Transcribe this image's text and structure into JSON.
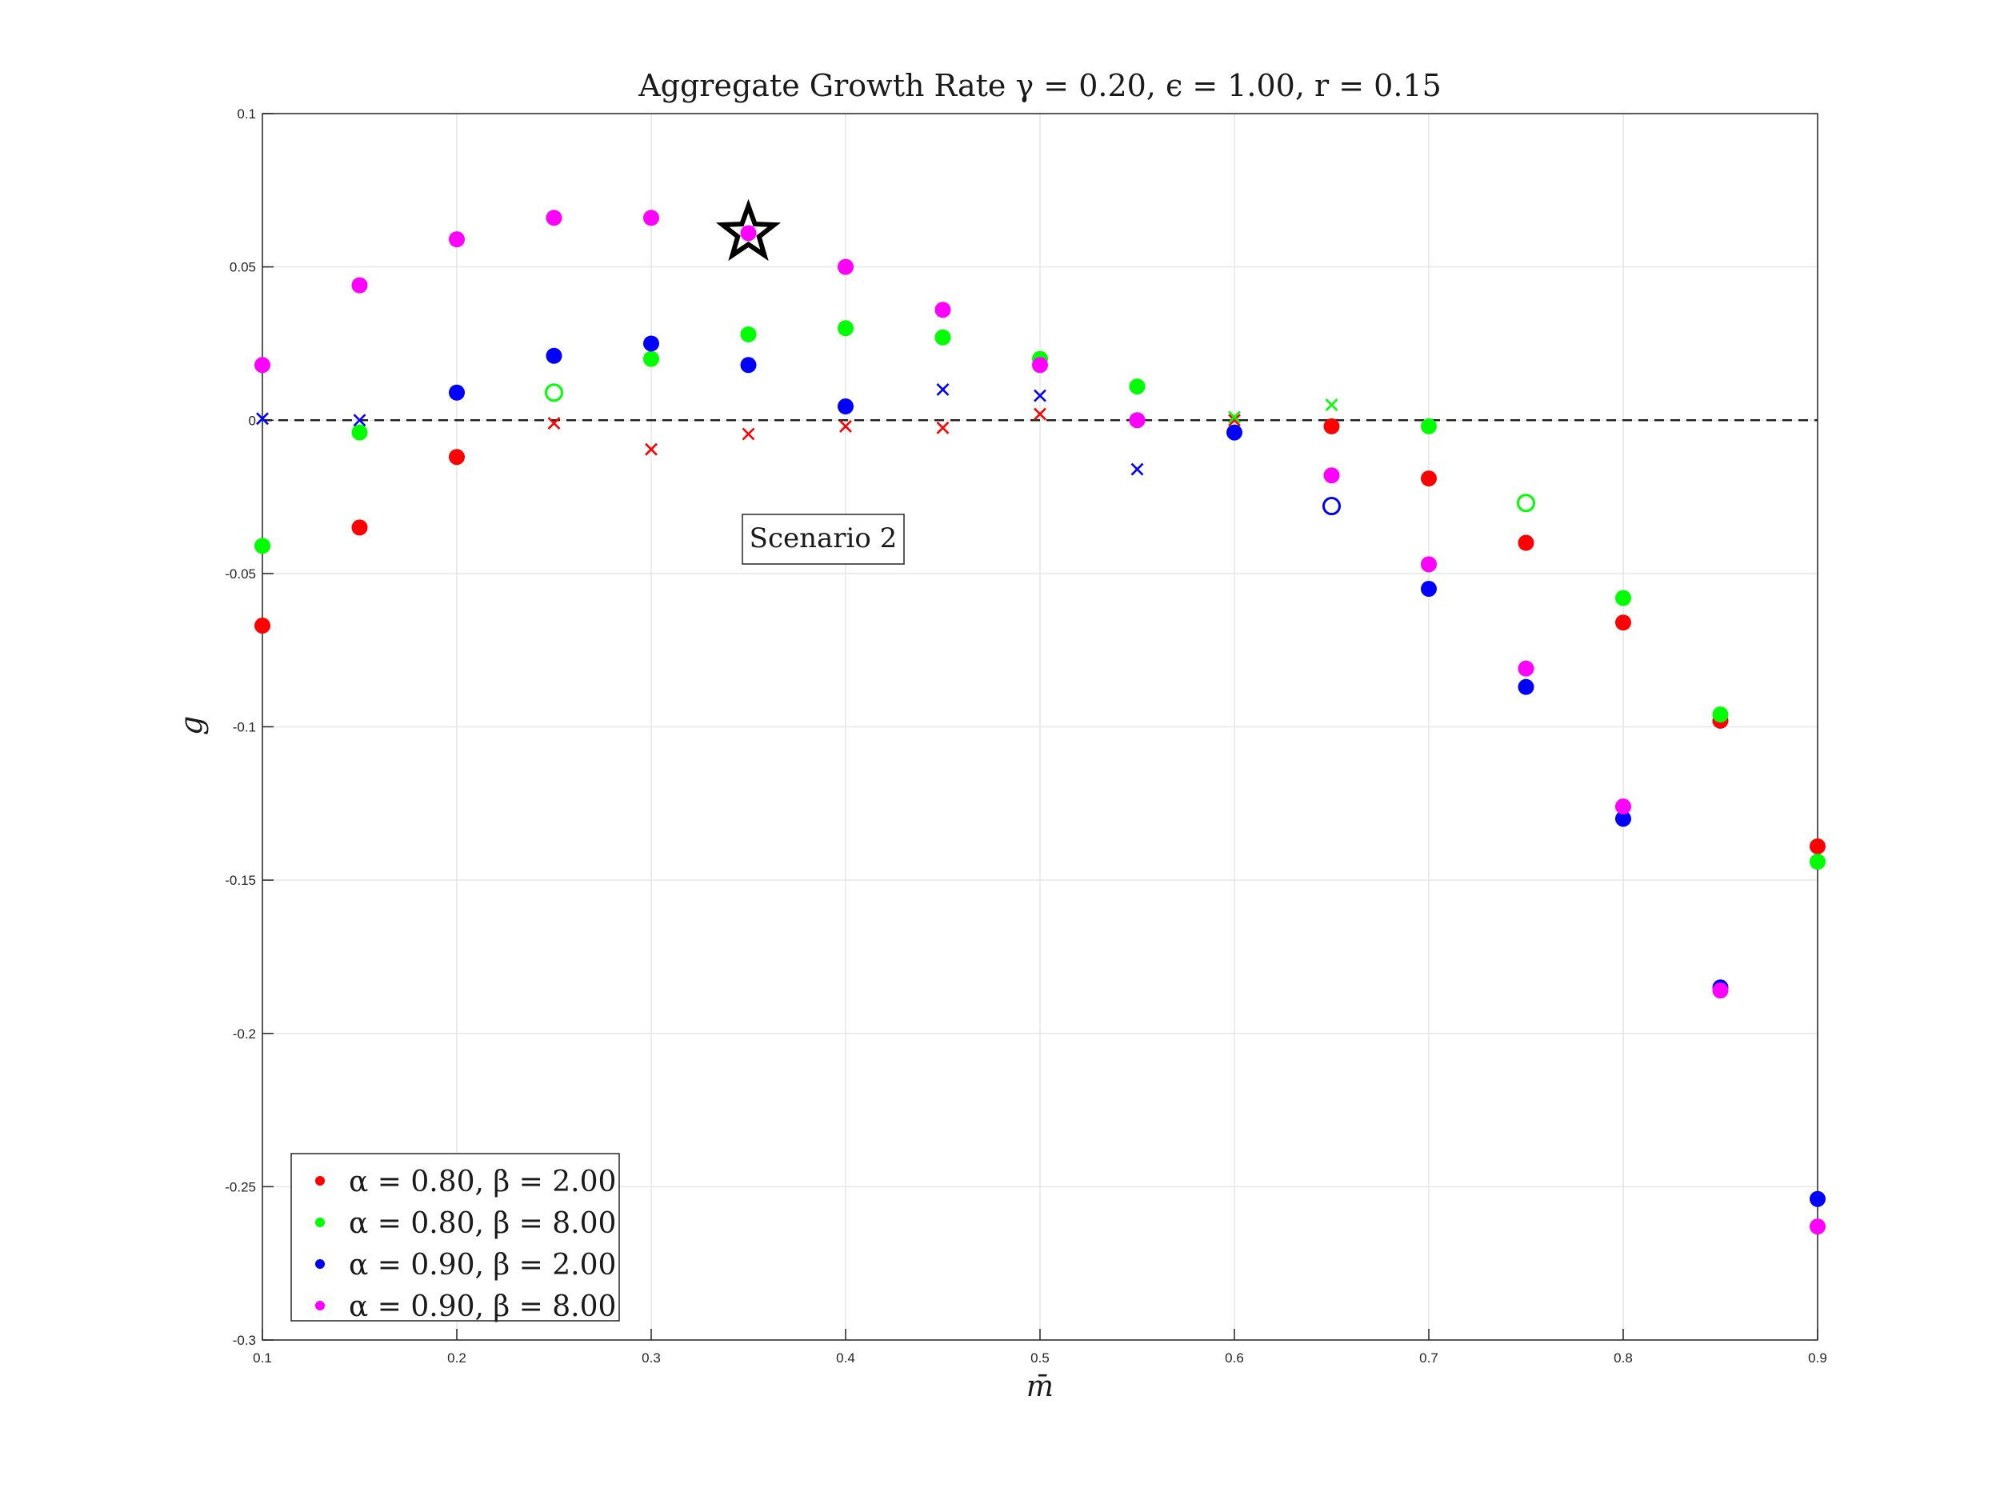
{
  "chart_data": {
    "type": "scatter",
    "title": "Aggregate Growth Rate γ = 0.20, ϵ = 1.00, r = 0.15",
    "xlabel": "m̄",
    "ylabel": "g",
    "xlim": [
      0.1,
      0.9
    ],
    "ylim": [
      -0.3,
      0.1
    ],
    "x_ticks": [
      0.1,
      0.2,
      0.3,
      0.4,
      0.5,
      0.6,
      0.7,
      0.8,
      0.9
    ],
    "x_tick_labels": [
      "0.1",
      "0.2",
      "0.3",
      "0.4",
      "0.5",
      "0.6",
      "0.7",
      "0.8",
      "0.9"
    ],
    "y_ticks": [
      0.1,
      0.05,
      0,
      -0.05,
      -0.1,
      -0.15,
      -0.2,
      -0.25,
      -0.3
    ],
    "y_tick_labels": [
      "0.1",
      "0.05",
      "0",
      "-0.05",
      "-0.1",
      "-0.15",
      "-0.2",
      "-0.25",
      "-0.3"
    ],
    "grid": true,
    "reference_line": {
      "y": 0,
      "style": "dashed",
      "color": "#222222"
    },
    "legend_position": "bottom-left",
    "annotation_text": "Scenario 2",
    "highlight": {
      "x": 0.35,
      "y": 0.061,
      "marker": "star"
    },
    "series": [
      {
        "name": "α = 0.80, β = 2.00",
        "color": "#ff0000",
        "points": [
          {
            "x": 0.1,
            "y": -0.067,
            "marker": "filled"
          },
          {
            "x": 0.15,
            "y": -0.035,
            "marker": "filled"
          },
          {
            "x": 0.2,
            "y": -0.012,
            "marker": "filled"
          },
          {
            "x": 0.25,
            "y": -0.001,
            "marker": "cross"
          },
          {
            "x": 0.3,
            "y": -0.0095,
            "marker": "cross"
          },
          {
            "x": 0.35,
            "y": -0.0045,
            "marker": "cross"
          },
          {
            "x": 0.4,
            "y": -0.002,
            "marker": "cross"
          },
          {
            "x": 0.45,
            "y": -0.0025,
            "marker": "cross"
          },
          {
            "x": 0.5,
            "y": 0.002,
            "marker": "cross"
          },
          {
            "x": 0.6,
            "y": 0.0,
            "marker": "cross"
          },
          {
            "x": 0.65,
            "y": -0.002,
            "marker": "filled"
          },
          {
            "x": 0.7,
            "y": -0.019,
            "marker": "filled"
          },
          {
            "x": 0.75,
            "y": -0.04,
            "marker": "filled"
          },
          {
            "x": 0.8,
            "y": -0.066,
            "marker": "filled"
          },
          {
            "x": 0.85,
            "y": -0.098,
            "marker": "filled"
          },
          {
            "x": 0.9,
            "y": -0.139,
            "marker": "filled"
          }
        ]
      },
      {
        "name": "α = 0.80, β = 8.00",
        "color": "#00ff00",
        "points": [
          {
            "x": 0.1,
            "y": -0.041,
            "marker": "filled"
          },
          {
            "x": 0.15,
            "y": -0.004,
            "marker": "filled"
          },
          {
            "x": 0.25,
            "y": 0.009,
            "marker": "open"
          },
          {
            "x": 0.3,
            "y": 0.02,
            "marker": "filled"
          },
          {
            "x": 0.35,
            "y": 0.028,
            "marker": "filled"
          },
          {
            "x": 0.4,
            "y": 0.03,
            "marker": "filled"
          },
          {
            "x": 0.45,
            "y": 0.027,
            "marker": "filled"
          },
          {
            "x": 0.5,
            "y": 0.02,
            "marker": "filled"
          },
          {
            "x": 0.55,
            "y": 0.011,
            "marker": "filled"
          },
          {
            "x": 0.6,
            "y": 0.001,
            "marker": "cross"
          },
          {
            "x": 0.65,
            "y": 0.005,
            "marker": "cross"
          },
          {
            "x": 0.7,
            "y": -0.002,
            "marker": "filled"
          },
          {
            "x": 0.75,
            "y": -0.027,
            "marker": "open"
          },
          {
            "x": 0.8,
            "y": -0.058,
            "marker": "filled"
          },
          {
            "x": 0.85,
            "y": -0.096,
            "marker": "filled"
          },
          {
            "x": 0.9,
            "y": -0.144,
            "marker": "filled"
          }
        ]
      },
      {
        "name": "α = 0.90, β = 2.00",
        "color": "#0000ff",
        "points": [
          {
            "x": 0.1,
            "y": 0.0005,
            "marker": "cross"
          },
          {
            "x": 0.15,
            "y": 0.0,
            "marker": "cross"
          },
          {
            "x": 0.2,
            "y": 0.009,
            "marker": "filled"
          },
          {
            "x": 0.25,
            "y": 0.021,
            "marker": "filled"
          },
          {
            "x": 0.3,
            "y": 0.025,
            "marker": "filled"
          },
          {
            "x": 0.35,
            "y": 0.018,
            "marker": "filled"
          },
          {
            "x": 0.4,
            "y": 0.0045,
            "marker": "filled"
          },
          {
            "x": 0.45,
            "y": 0.01,
            "marker": "cross"
          },
          {
            "x": 0.5,
            "y": 0.008,
            "marker": "cross"
          },
          {
            "x": 0.55,
            "y": -0.016,
            "marker": "cross"
          },
          {
            "x": 0.6,
            "y": -0.004,
            "marker": "filled"
          },
          {
            "x": 0.65,
            "y": -0.028,
            "marker": "open"
          },
          {
            "x": 0.7,
            "y": -0.055,
            "marker": "filled"
          },
          {
            "x": 0.75,
            "y": -0.087,
            "marker": "filled"
          },
          {
            "x": 0.8,
            "y": -0.13,
            "marker": "filled"
          },
          {
            "x": 0.85,
            "y": -0.185,
            "marker": "filled"
          },
          {
            "x": 0.9,
            "y": -0.254,
            "marker": "filled"
          }
        ]
      },
      {
        "name": "α = 0.90, β = 8.00",
        "color": "#ff00ff",
        "points": [
          {
            "x": 0.1,
            "y": 0.018,
            "marker": "filled"
          },
          {
            "x": 0.15,
            "y": 0.044,
            "marker": "filled"
          },
          {
            "x": 0.2,
            "y": 0.059,
            "marker": "filled"
          },
          {
            "x": 0.25,
            "y": 0.066,
            "marker": "filled"
          },
          {
            "x": 0.3,
            "y": 0.066,
            "marker": "filled"
          },
          {
            "x": 0.35,
            "y": 0.061,
            "marker": "filled"
          },
          {
            "x": 0.4,
            "y": 0.05,
            "marker": "filled"
          },
          {
            "x": 0.45,
            "y": 0.036,
            "marker": "filled"
          },
          {
            "x": 0.5,
            "y": 0.018,
            "marker": "filled"
          },
          {
            "x": 0.55,
            "y": 0.0,
            "marker": "filled"
          },
          {
            "x": 0.65,
            "y": -0.018,
            "marker": "filled"
          },
          {
            "x": 0.7,
            "y": -0.047,
            "marker": "filled"
          },
          {
            "x": 0.75,
            "y": -0.081,
            "marker": "filled"
          },
          {
            "x": 0.8,
            "y": -0.126,
            "marker": "filled"
          },
          {
            "x": 0.85,
            "y": -0.186,
            "marker": "filled"
          },
          {
            "x": 0.9,
            "y": -0.263,
            "marker": "filled"
          }
        ]
      }
    ]
  }
}
